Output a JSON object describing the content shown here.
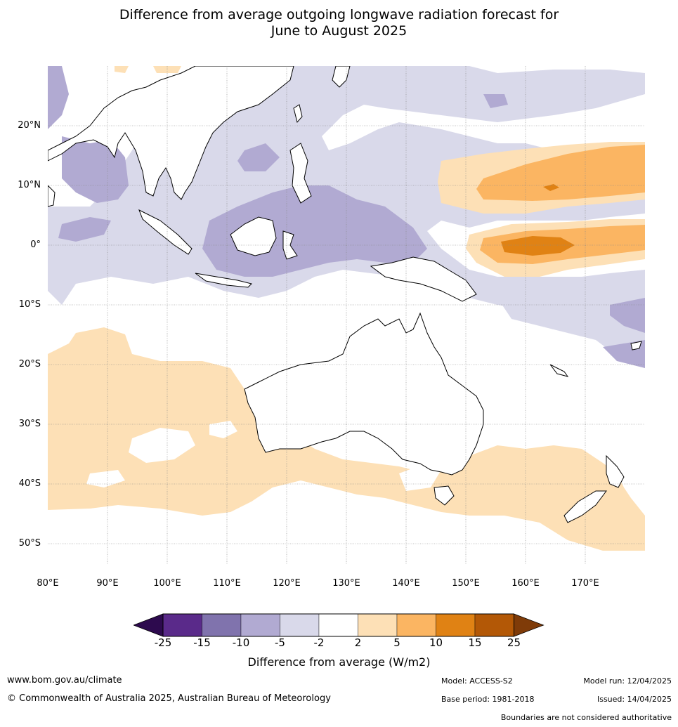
{
  "title_line1": "Difference from average outgoing longwave radiation forecast for",
  "title_line2": "June to August 2025",
  "latitude_labels": [
    "20°N",
    "10°N",
    "0°",
    "10°S",
    "20°S",
    "30°S",
    "40°S",
    "50°S"
  ],
  "longitude_labels": [
    "80°E",
    "90°E",
    "100°E",
    "110°E",
    "120°E",
    "130°E",
    "140°E",
    "150°E",
    "160°E",
    "170°E"
  ],
  "colorbar": {
    "ticks": [
      "-25",
      "-15",
      "-10",
      "-5",
      "-2",
      "2",
      "5",
      "10",
      "15",
      "25"
    ],
    "colors": [
      "#2d0a4e",
      "#5a2a8a",
      "#8073ad",
      "#b1aad2",
      "#d9d9ea",
      "#ffffff",
      "#fde0b6",
      "#fbb562",
      "#e08214",
      "#b35806",
      "#7f3b08"
    ],
    "label": "Difference from average (W/m2)"
  },
  "footer": {
    "url": "www.bom.gov.au/climate",
    "copyright": "© Commonwealth of Australia 2025, Australian Bureau of Meteorology",
    "model": "Model: ACCESS-S2",
    "model_run": "Model run: 12/04/2025",
    "base_period": "Base period: 1981-2018",
    "issued": "Issued: 14/04/2025",
    "disclaimer": "Boundaries are not considered authoritative"
  }
}
